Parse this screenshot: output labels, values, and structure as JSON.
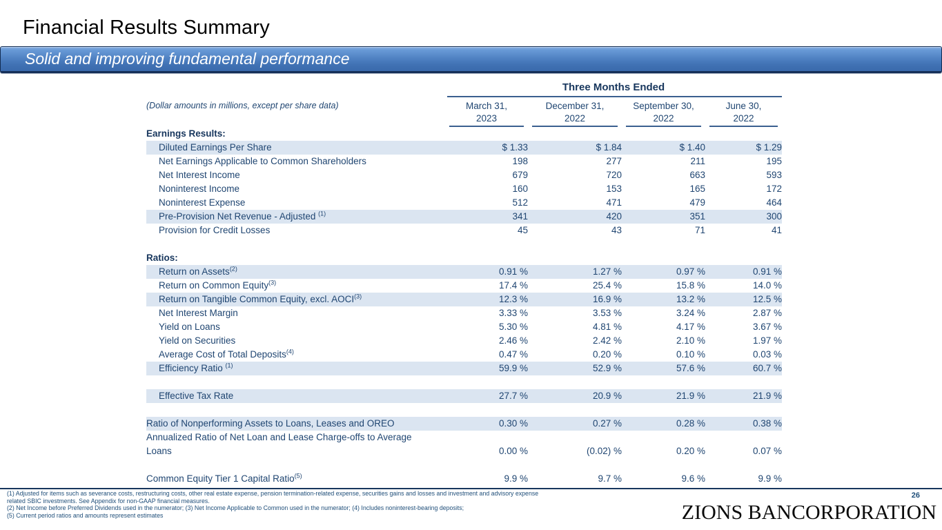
{
  "slide": {
    "title": "Financial Results Summary",
    "subtitle": "Solid and improving fundamental performance",
    "page_number": "26",
    "brand": "ZIONS BANCORPORATION"
  },
  "colors": {
    "accent_dark_navy": "#17365D",
    "table_text": "#1F4571",
    "row_highlight": "#DBE5F1",
    "banner_blue_top": "#8DB3E4",
    "banner_blue_bottom": "#3A6AAD",
    "footnote_text": "#1F4E79"
  },
  "table": {
    "note": "(Dollar amounts in millions, except per share data)",
    "group_header": "Three Months Ended",
    "columns": [
      {
        "line1": "March 31,",
        "line2": "2023"
      },
      {
        "line1": "December 31,",
        "line2": "2022"
      },
      {
        "line1": "September 30,",
        "line2": "2022"
      },
      {
        "line1": "June 30,",
        "line2": "2022"
      }
    ],
    "rows": [
      {
        "type": "section",
        "label": "Earnings Results:"
      },
      {
        "type": "data",
        "label": "Diluted Earnings Per Share",
        "indent": true,
        "highlight": true,
        "values": [
          "$ 1.33",
          "$ 1.84",
          "$ 1.40",
          "$ 1.29"
        ]
      },
      {
        "type": "data",
        "label": "Net Earnings Applicable to Common Shareholders",
        "indent": true,
        "highlight": false,
        "values": [
          "198",
          "277",
          "211",
          "195"
        ]
      },
      {
        "type": "data",
        "label": "Net Interest Income",
        "indent": true,
        "highlight": false,
        "values": [
          "679",
          "720",
          "663",
          "593"
        ]
      },
      {
        "type": "data",
        "label": "Noninterest Income",
        "indent": true,
        "highlight": false,
        "values": [
          "160",
          "153",
          "165",
          "172"
        ]
      },
      {
        "type": "data",
        "label": "Noninterest Expense",
        "indent": true,
        "highlight": false,
        "values": [
          "512",
          "471",
          "479",
          "464"
        ]
      },
      {
        "type": "data",
        "label": "Pre-Provision Net Revenue - Adjusted ",
        "sup": "(1)",
        "indent": true,
        "highlight": true,
        "values": [
          "341",
          "420",
          "351",
          "300"
        ]
      },
      {
        "type": "data",
        "label": "Provision for Credit Losses",
        "indent": true,
        "highlight": false,
        "values": [
          "45",
          "43",
          "71",
          "41"
        ]
      },
      {
        "type": "blank"
      },
      {
        "type": "section",
        "label": "Ratios:"
      },
      {
        "type": "data",
        "label": "Return on Assets",
        "sup": "(2)",
        "indent": true,
        "highlight": true,
        "values": [
          "0.91 %",
          "1.27 %",
          "0.97 %",
          "0.91 %"
        ]
      },
      {
        "type": "data",
        "label": "Return on Common Equity",
        "sup": "(3)",
        "indent": true,
        "highlight": false,
        "values": [
          "17.4 %",
          "25.4 %",
          "15.8 %",
          "14.0 %"
        ]
      },
      {
        "type": "data",
        "label": "Return on Tangible Common Equity, excl. AOCI",
        "sup": "(3)",
        "indent": true,
        "highlight": true,
        "values": [
          "12.3 %",
          "16.9 %",
          "13.2 %",
          "12.5 %"
        ]
      },
      {
        "type": "data",
        "label": "Net Interest Margin",
        "indent": true,
        "highlight": false,
        "values": [
          "3.33 %",
          "3.53 %",
          "3.24 %",
          "2.87 %"
        ]
      },
      {
        "type": "data",
        "label": "Yield on Loans",
        "indent": true,
        "highlight": false,
        "values": [
          "5.30 %",
          "4.81 %",
          "4.17 %",
          "3.67 %"
        ]
      },
      {
        "type": "data",
        "label": "Yield on Securities",
        "indent": true,
        "highlight": false,
        "values": [
          "2.46 %",
          "2.42 %",
          "2.10 %",
          "1.97 %"
        ]
      },
      {
        "type": "data",
        "label": "Average Cost of Total Deposits",
        "sup": "(4)",
        "indent": true,
        "highlight": false,
        "values": [
          "0.47 %",
          "0.20 %",
          "0.10 %",
          "0.03 %"
        ]
      },
      {
        "type": "data",
        "label": "Efficiency Ratio ",
        "sup": "(1)",
        "indent": true,
        "highlight": true,
        "values": [
          "59.9 %",
          "52.9 %",
          "57.6 %",
          "60.7 %"
        ]
      },
      {
        "type": "blank"
      },
      {
        "type": "data",
        "label": "Effective Tax Rate",
        "indent": true,
        "highlight": true,
        "values": [
          "27.7 %",
          "20.9 %",
          "21.9 %",
          "21.9 %"
        ]
      },
      {
        "type": "blank"
      },
      {
        "type": "data",
        "label": "Ratio of Nonperforming Assets to Loans, Leases and OREO",
        "indent": false,
        "highlight": true,
        "values": [
          "0.30 %",
          "0.27 %",
          "0.28 %",
          "0.38 %"
        ]
      },
      {
        "type": "data2",
        "label_lines": [
          "Annualized Ratio of Net Loan and Lease Charge-offs to Average",
          "Loans"
        ],
        "indent": false,
        "highlight": false,
        "values": [
          "0.00 %",
          "(0.02) %",
          "0.20 %",
          "0.07 %"
        ]
      },
      {
        "type": "blank"
      },
      {
        "type": "data",
        "label": "Common Equity Tier 1 Capital Ratio",
        "sup": "(5)",
        "indent": false,
        "highlight": false,
        "values": [
          "9.9 %",
          "9.7 %",
          "9.6 %",
          "9.9 %"
        ]
      }
    ]
  },
  "footnotes": {
    "lines": [
      "(1) Adjusted for items such as severance costs, restructuring costs, other real estate expense, pension termination-related expense, securities gains and losses and investment and advisory expense",
      "related SBIC investments.  See Appendix for non-GAAP financial measures.",
      "(2) Net Income before Preferred Dividends used in the numerator; (3) Net Income Applicable to Common used in the numerator; (4) Includes noninterest-bearing deposits;",
      "(5) Current period ratios and amounts represent estimates"
    ]
  }
}
